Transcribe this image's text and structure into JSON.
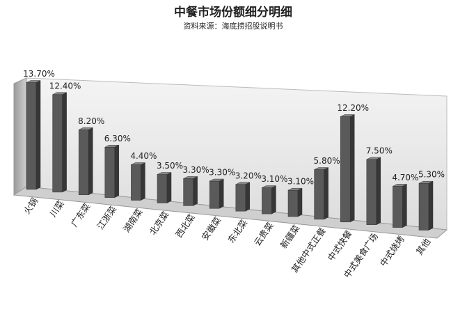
{
  "chart_data": {
    "type": "bar3d",
    "title": "中餐市场份额细分明细",
    "subtitle": "资料来源：海底捞招股说明书",
    "categories": [
      "火锅",
      "川菜",
      "广东菜",
      "江浙菜",
      "湖南菜",
      "北京菜",
      "西北菜",
      "安徽菜",
      "东北菜",
      "云贵菜",
      "新疆菜",
      "其他中式正餐",
      "中式快餐",
      "中式美食广场",
      "中式烧烤",
      "其他"
    ],
    "values": [
      13.7,
      12.4,
      8.2,
      6.3,
      4.4,
      3.5,
      3.3,
      3.3,
      3.2,
      3.1,
      3.1,
      5.8,
      12.2,
      7.5,
      4.7,
      5.3
    ],
    "value_labels": [
      "13.70%",
      "12.40%",
      "8.20%",
      "6.30%",
      "4.40%",
      "3.50%",
      "3.30%",
      "3.30%",
      "3.20%",
      "3.10%",
      "3.10%",
      "5.80%",
      "12.20%",
      "7.50%",
      "4.70%",
      "5.30%"
    ],
    "color": "#5a5a5a"
  }
}
